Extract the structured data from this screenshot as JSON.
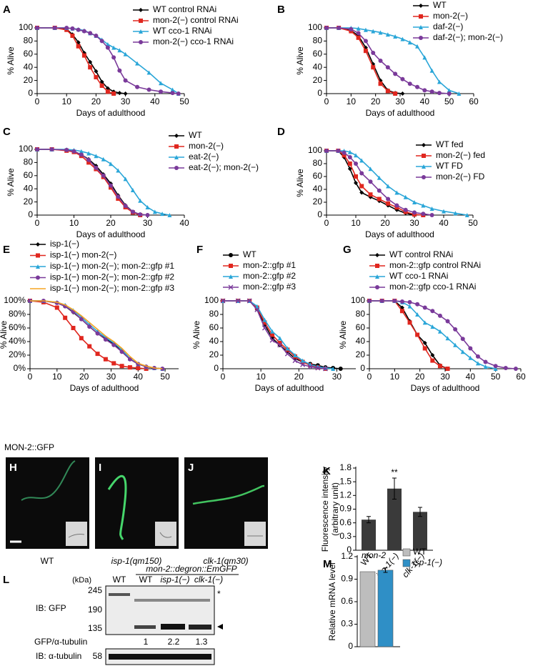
{
  "chart_data": [
    {
      "type": "line",
      "panel": "A",
      "x_label": "Days of adulthood",
      "y_label": "% Alive",
      "xlim": [
        0,
        50
      ],
      "xticks": [
        0,
        10,
        20,
        30,
        40,
        50
      ],
      "ylim": [
        0,
        100
      ],
      "yticks": [
        0,
        20,
        40,
        60,
        80,
        100
      ],
      "x": [
        0,
        6,
        10,
        12,
        14,
        16,
        18,
        20,
        22,
        24,
        26,
        28,
        30,
        34,
        38,
        42,
        46,
        48
      ],
      "series": [
        {
          "name": "WT control RNAi",
          "color": "#000000",
          "marker": "diamond",
          "values": [
            100,
            100,
            98,
            90,
            78,
            62,
            48,
            34,
            18,
            8,
            3,
            1,
            0,
            null,
            null,
            null,
            null,
            null
          ]
        },
        {
          "name": "mon-2(−) control RNAi",
          "color": "#e0271f",
          "marker": "square",
          "values": [
            100,
            100,
            97,
            88,
            72,
            58,
            40,
            25,
            12,
            3,
            0,
            null,
            null,
            null,
            null,
            null,
            null,
            null
          ]
        },
        {
          "name": "WT cco-1 RNAi",
          "color": "#2aa6d8",
          "marker": "triangle",
          "values": [
            100,
            100,
            100,
            99,
            98,
            96,
            92,
            88,
            82,
            75,
            70,
            66,
            60,
            46,
            32,
            16,
            6,
            0
          ]
        },
        {
          "name": "mon-2(−) cco-1 RNAi",
          "color": "#7a3a9a",
          "marker": "circle",
          "values": [
            100,
            100,
            100,
            99,
            97,
            95,
            92,
            88,
            80,
            70,
            55,
            35,
            20,
            10,
            6,
            3,
            1,
            0
          ]
        }
      ]
    },
    {
      "type": "line",
      "panel": "B",
      "x_label": "Days of adulthood",
      "y_label": "% Alive",
      "xlim": [
        0,
        60
      ],
      "xticks": [
        0,
        10,
        20,
        30,
        40,
        50,
        60
      ],
      "ylim": [
        0,
        100
      ],
      "yticks": [
        0,
        20,
        40,
        60,
        80,
        100
      ],
      "x": [
        0,
        5,
        10,
        13,
        16,
        19,
        22,
        25,
        28,
        31,
        34,
        37,
        40,
        43,
        46,
        50,
        54
      ],
      "series": [
        {
          "name": "WT",
          "color": "#000000",
          "marker": "diamond",
          "values": [
            100,
            100,
            96,
            88,
            70,
            45,
            20,
            5,
            1,
            0,
            null,
            null,
            null,
            null,
            null,
            null,
            null
          ]
        },
        {
          "name": "mon-2(−)",
          "color": "#e0271f",
          "marker": "square",
          "values": [
            100,
            100,
            95,
            85,
            65,
            40,
            15,
            4,
            0,
            null,
            null,
            null,
            null,
            null,
            null,
            null,
            null
          ]
        },
        {
          "name": "daf-2(−)",
          "color": "#2aa6d8",
          "marker": "triangle",
          "values": [
            100,
            100,
            100,
            99,
            97,
            95,
            93,
            90,
            87,
            83,
            78,
            72,
            55,
            35,
            18,
            5,
            0
          ]
        },
        {
          "name": "daf-2(−); mon-2(−)",
          "color": "#7a3a9a",
          "marker": "circle",
          "values": [
            100,
            100,
            98,
            92,
            80,
            62,
            50,
            40,
            30,
            22,
            15,
            10,
            5,
            3,
            1,
            0,
            null
          ]
        }
      ]
    },
    {
      "type": "line",
      "panel": "C",
      "x_label": "Days of adulthood",
      "y_label": "% Alive",
      "xlim": [
        0,
        40
      ],
      "xticks": [
        0,
        10,
        20,
        30,
        40
      ],
      "ylim": [
        0,
        100
      ],
      "yticks": [
        0,
        20,
        40,
        60,
        80,
        100
      ],
      "x": [
        0,
        4,
        8,
        10,
        12,
        14,
        16,
        18,
        20,
        22,
        24,
        26,
        28,
        30,
        32,
        34,
        36
      ],
      "series": [
        {
          "name": "WT",
          "color": "#000000",
          "marker": "diamond",
          "values": [
            100,
            100,
            99,
            97,
            92,
            85,
            75,
            62,
            48,
            30,
            15,
            5,
            1,
            0,
            null,
            null,
            null
          ]
        },
        {
          "name": "mon-2(−)",
          "color": "#e0271f",
          "marker": "square",
          "values": [
            100,
            100,
            98,
            96,
            90,
            80,
            70,
            58,
            42,
            25,
            12,
            4,
            0,
            null,
            null,
            null,
            null
          ]
        },
        {
          "name": "eat-2(−)",
          "color": "#2aa6d8",
          "marker": "triangle",
          "values": [
            100,
            100,
            100,
            99,
            97,
            94,
            90,
            85,
            78,
            68,
            55,
            38,
            22,
            12,
            5,
            2,
            0
          ]
        },
        {
          "name": "eat-2(−); mon-2(−)",
          "color": "#7a3a9a",
          "marker": "circle",
          "values": [
            100,
            100,
            99,
            97,
            92,
            84,
            72,
            60,
            45,
            28,
            14,
            5,
            1,
            0,
            null,
            null,
            null
          ]
        }
      ]
    },
    {
      "type": "line",
      "panel": "D",
      "x_label": "Days of adulthood",
      "y_label": "% Alive",
      "xlim": [
        0,
        50
      ],
      "xticks": [
        0,
        10,
        20,
        30,
        40,
        50
      ],
      "ylim": [
        0,
        100
      ],
      "yticks": [
        0,
        20,
        40,
        60,
        80,
        100
      ],
      "x": [
        0,
        4,
        6,
        8,
        10,
        12,
        15,
        18,
        21,
        24,
        27,
        30,
        33,
        36,
        40,
        44,
        48
      ],
      "series": [
        {
          "name": "WT fed",
          "color": "#000000",
          "marker": "diamond",
          "values": [
            100,
            100,
            90,
            72,
            50,
            35,
            28,
            22,
            15,
            8,
            3,
            0,
            null,
            null,
            null,
            null,
            null
          ]
        },
        {
          "name": "mon-2(−) fed",
          "color": "#e0271f",
          "marker": "square",
          "values": [
            100,
            100,
            93,
            80,
            60,
            45,
            32,
            25,
            18,
            12,
            5,
            1,
            0,
            null,
            null,
            null,
            null
          ]
        },
        {
          "name": "WT FD",
          "color": "#2aa6d8",
          "marker": "triangle",
          "values": [
            100,
            100,
            100,
            98,
            93,
            85,
            72,
            58,
            45,
            35,
            28,
            20,
            15,
            10,
            6,
            3,
            0
          ]
        },
        {
          "name": "mon-2(−) FD",
          "color": "#7a3a9a",
          "marker": "circle",
          "values": [
            100,
            100,
            97,
            90,
            80,
            65,
            52,
            38,
            25,
            15,
            8,
            4,
            2,
            0,
            null,
            null,
            null
          ]
        }
      ]
    },
    {
      "type": "line",
      "panel": "E",
      "x_label": "Days of adulthood",
      "y_label": "% Alive",
      "xlim": [
        0,
        55
      ],
      "xticks": [
        0,
        10,
        20,
        30,
        40,
        50
      ],
      "ylim": [
        0,
        100
      ],
      "yticks": [
        {
          "value": 0,
          "label": "0%"
        },
        {
          "value": 20,
          "label": "20%"
        },
        {
          "value": 40,
          "label": "40%"
        },
        {
          "value": 60,
          "label": "60%"
        },
        {
          "value": 80,
          "label": "80%"
        },
        {
          "value": 100,
          "label": "100%"
        }
      ],
      "x": [
        0,
        5,
        10,
        13,
        16,
        19,
        22,
        25,
        28,
        31,
        34,
        37,
        40,
        43,
        46,
        49,
        52
      ],
      "series": [
        {
          "name": "isp-1(−)",
          "color": "#000000",
          "marker": "diamond",
          "values": [
            100,
            100,
            97,
            92,
            83,
            73,
            62,
            52,
            44,
            37,
            25,
            14,
            7,
            3,
            1,
            0,
            null
          ]
        },
        {
          "name": "isp-1(−) mon-2(−)",
          "color": "#e0271f",
          "marker": "square",
          "values": [
            100,
            98,
            90,
            75,
            60,
            45,
            33,
            22,
            14,
            8,
            4,
            2,
            1,
            0,
            null,
            null,
            null
          ]
        },
        {
          "name": "isp-1(−) mon-2(−); mon-2::gfp #1",
          "color": "#2aa6d8",
          "marker": "triangle",
          "values": [
            100,
            100,
            98,
            94,
            86,
            76,
            65,
            55,
            46,
            38,
            28,
            15,
            7,
            3,
            1,
            0,
            null
          ]
        },
        {
          "name": "isp-1(−) mon-2(−); mon-2::gfp #2",
          "color": "#7a3a9a",
          "marker": "circle",
          "values": [
            100,
            100,
            97,
            92,
            84,
            73,
            62,
            52,
            43,
            35,
            25,
            14,
            7,
            3,
            1,
            0,
            null
          ]
        },
        {
          "name": "isp-1(−) mon-2(−); mon-2::gfp #3",
          "color": "#f5a623",
          "marker": "none",
          "values": [
            100,
            100,
            98,
            94,
            87,
            78,
            68,
            58,
            48,
            40,
            30,
            18,
            8,
            4,
            1,
            0,
            null
          ]
        }
      ]
    },
    {
      "type": "line",
      "panel": "F",
      "x_label": "Days of adulthood",
      "y_label": "% Alive",
      "xlim": [
        0,
        35
      ],
      "xticks": [
        0,
        10,
        20,
        30
      ],
      "ylim": [
        0,
        100
      ],
      "yticks": [
        0,
        20,
        40,
        60,
        80,
        100
      ],
      "x": [
        0,
        4,
        7,
        9,
        11,
        13,
        15,
        17,
        19,
        21,
        23,
        25,
        27,
        29,
        31
      ],
      "series": [
        {
          "name": "WT",
          "color": "#000000",
          "marker": "circle",
          "values": [
            100,
            100,
            100,
            88,
            65,
            45,
            35,
            25,
            15,
            10,
            7,
            5,
            2,
            1,
            0
          ]
        },
        {
          "name": "mon-2::gfp #1",
          "color": "#e0271f",
          "marker": "square",
          "values": [
            100,
            100,
            100,
            90,
            68,
            50,
            38,
            28,
            18,
            10,
            5,
            2,
            0,
            null,
            null
          ]
        },
        {
          "name": "mon-2::gfp #2",
          "color": "#2aa6d8",
          "marker": "triangle",
          "values": [
            100,
            100,
            100,
            92,
            72,
            55,
            45,
            30,
            20,
            12,
            6,
            3,
            1,
            0,
            null
          ]
        },
        {
          "name": "mon-2::gfp #3",
          "color": "#7a3a9a",
          "marker": "cross",
          "values": [
            100,
            100,
            100,
            87,
            60,
            42,
            35,
            22,
            12,
            6,
            3,
            1,
            0,
            null,
            null
          ]
        }
      ]
    },
    {
      "type": "line",
      "panel": "G",
      "x_label": "Days of adulthood",
      "y_label": "% Alive",
      "xlim": [
        0,
        60
      ],
      "xticks": [
        0,
        10,
        20,
        30,
        40,
        50,
        60
      ],
      "ylim": [
        0,
        100
      ],
      "yticks": [
        0,
        20,
        40,
        60,
        80,
        100
      ],
      "x": [
        0,
        5,
        10,
        13,
        16,
        19,
        22,
        25,
        28,
        31,
        34,
        37,
        40,
        43,
        46,
        50,
        54,
        58
      ],
      "series": [
        {
          "name": "WT control RNAi",
          "color": "#000000",
          "marker": "diamond",
          "values": [
            100,
            100,
            100,
            90,
            70,
            50,
            38,
            20,
            5,
            0,
            null,
            null,
            null,
            null,
            null,
            null,
            null,
            null
          ]
        },
        {
          "name": "mon-2::gfp control RNAi",
          "color": "#e0271f",
          "marker": "square",
          "values": [
            100,
            100,
            100,
            85,
            68,
            50,
            30,
            12,
            4,
            0,
            null,
            null,
            null,
            null,
            null,
            null,
            null,
            null
          ]
        },
        {
          "name": "WT cco-1 RNAi",
          "color": "#2aa6d8",
          "marker": "triangle",
          "values": [
            100,
            100,
            100,
            98,
            92,
            80,
            68,
            62,
            55,
            45,
            35,
            25,
            16,
            8,
            3,
            0,
            null,
            null
          ]
        },
        {
          "name": "mon-2::gfp cco-1 RNAi",
          "color": "#7a3a9a",
          "marker": "circle",
          "values": [
            100,
            100,
            100,
            99,
            98,
            95,
            90,
            85,
            78,
            70,
            58,
            44,
            30,
            18,
            10,
            4,
            1,
            0
          ]
        }
      ]
    },
    {
      "type": "bar",
      "panel": "K",
      "y_label": [
        "Fluorescence intensity",
        "(arbitrary unit)"
      ],
      "categories": [
        "WT",
        "isp-1(−)",
        "clk-1(−)"
      ],
      "values": [
        0.67,
        1.35,
        0.84
      ],
      "errors": [
        0.07,
        0.23,
        0.1
      ],
      "annotations": [
        null,
        "**",
        null
      ],
      "color": "#3a3a3a",
      "ylim": [
        0,
        1.8
      ],
      "yticks": [
        0,
        0.3,
        0.6,
        0.9,
        1.2,
        1.5,
        1.8
      ]
    },
    {
      "type": "bar",
      "panel": "M",
      "title": "mon-2",
      "y_label": "Relative mRNA level",
      "series": [
        {
          "name": "WT",
          "color": "#bdbdbd",
          "values": [
            1.0
          ]
        },
        {
          "name": "isp-1(−)",
          "color": "#2f8fc6",
          "values": [
            1.02
          ],
          "errors": [
            0.03
          ]
        }
      ],
      "ylim": [
        0,
        1.2
      ],
      "yticks": [
        0,
        0.3,
        0.6,
        0.9,
        1.2
      ]
    }
  ],
  "images": {
    "title": "MON-2::GFP",
    "panels": [
      {
        "letter": "H",
        "caption": "WT"
      },
      {
        "letter": "I",
        "caption": "isp-1(qm150)"
      },
      {
        "letter": "J",
        "caption": "clk-1(qm30)"
      }
    ]
  },
  "blot": {
    "panel": "L",
    "unit": "(kDa)",
    "group": "mon-2::degron::EmGFP",
    "lanes": [
      "WT",
      "WT",
      "isp-1(−)",
      "clk-1(−)"
    ],
    "markers": [
      "245",
      "190",
      "135",
      "58"
    ],
    "gfp_label": "IB: GFP",
    "tubulin_label": "IB: α-tubulin",
    "star": "*",
    "ratio_label": "GFP/α-tubulin",
    "ratios": [
      "1",
      "2.2",
      "1.3"
    ]
  }
}
